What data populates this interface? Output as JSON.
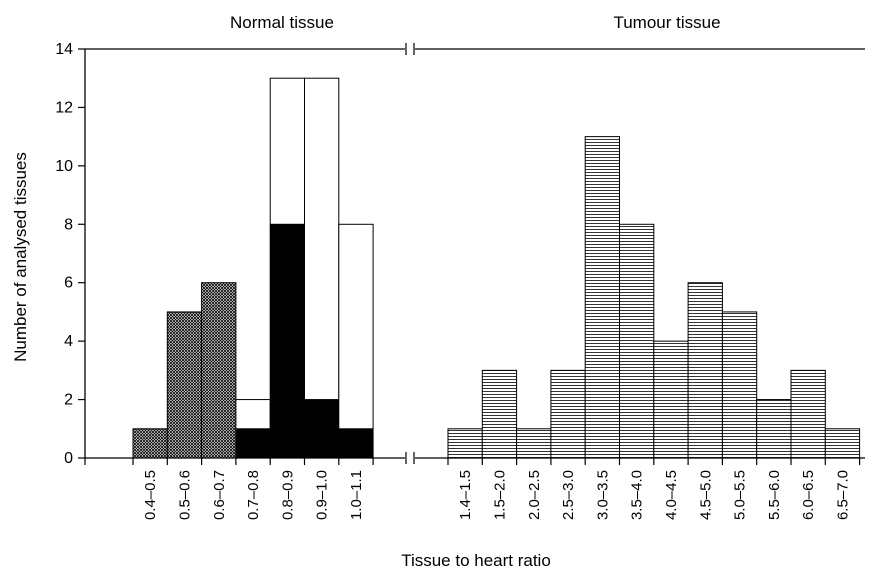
{
  "chart_data": {
    "type": "bar",
    "xlabel": "Tissue to heart ratio",
    "ylabel": "Number of analysed tissues",
    "ylim": [
      0,
      14
    ],
    "yticks": [
      0,
      2,
      4,
      6,
      8,
      10,
      12,
      14
    ],
    "grid": false,
    "axis_break": true,
    "panels": [
      {
        "title": "Normal tissue",
        "categories": [
          "0.4–0.5",
          "0.5–0.6",
          "0.6–0.7",
          "0.7–0.8",
          "0.8–0.9",
          "0.9–1.0",
          "1.0–1.1"
        ],
        "stacked": true,
        "series": [
          {
            "values": [
              1,
              5,
              6,
              0,
              0,
              0,
              0
            ],
            "fill": "cross-hatch"
          },
          {
            "values": [
              0,
              0,
              0,
              1,
              8,
              2,
              1
            ],
            "fill": "#000000"
          },
          {
            "values": [
              0,
              0,
              0,
              1,
              5,
              11,
              7
            ],
            "fill": "#ffffff"
          }
        ]
      },
      {
        "title": "Tumour tissue",
        "categories": [
          "1.4–1.5",
          "1.5–2.0",
          "2.0–2.5",
          "2.5–3.0",
          "3.0–3.5",
          "3.5–4.0",
          "4.0–4.5",
          "4.5–5.0",
          "5.0–5.5",
          "5.5–6.0",
          "6.0–6.5",
          "6.5–7.0"
        ],
        "stacked": false,
        "series": [
          {
            "values": [
              1,
              3,
              1,
              3,
              11,
              8,
              4,
              6,
              5,
              2,
              3,
              1
            ],
            "fill": "horizontal-lines"
          }
        ]
      }
    ]
  }
}
